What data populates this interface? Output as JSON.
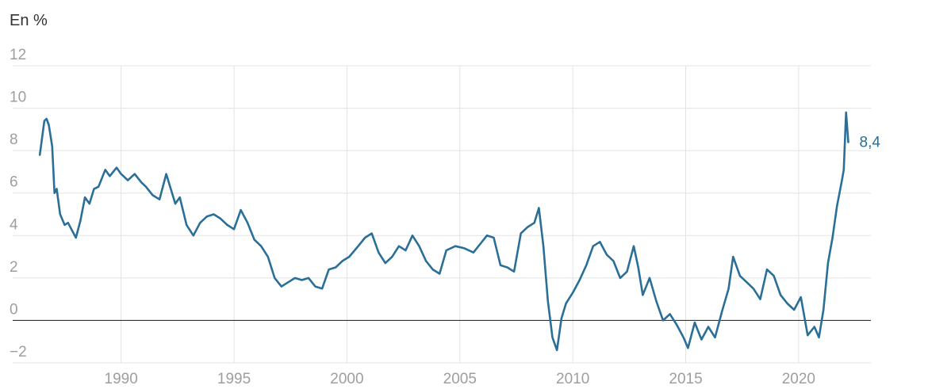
{
  "chart_data": {
    "type": "line",
    "title": "",
    "ylabel": "En %",
    "xlabel": "",
    "ylim": [
      -2,
      12
    ],
    "xlim": [
      1985.2,
      2023.2
    ],
    "yticks": [
      12,
      10,
      8,
      6,
      4,
      2,
      0,
      -2
    ],
    "ytick_labels": [
      "12",
      "10",
      "8",
      "6",
      "4",
      "2",
      "0",
      "−2"
    ],
    "xticks": [
      1990,
      1995,
      2000,
      2005,
      2010,
      2015,
      2020
    ],
    "xtick_labels": [
      "1990",
      "1995",
      "2000",
      "2005",
      "2010",
      "2015",
      "2020"
    ],
    "grid": true,
    "zero_line": true,
    "colors": {
      "line": "#2a6f97",
      "grid": "#e3e3e3",
      "zero": "#333333",
      "tick_text": "#9e9e9e"
    },
    "end_label": "8,4",
    "series": [
      {
        "name": "",
        "x": [
          1986.4,
          1986.6,
          1986.7,
          1986.8,
          1986.95,
          1987.05,
          1987.15,
          1987.3,
          1987.5,
          1987.65,
          1987.8,
          1988.0,
          1988.2,
          1988.4,
          1988.6,
          1988.8,
          1989.0,
          1989.3,
          1989.5,
          1989.8,
          1990.0,
          1990.3,
          1990.6,
          1990.9,
          1991.1,
          1991.4,
          1991.7,
          1992.0,
          1992.2,
          1992.4,
          1992.6,
          1992.9,
          1993.2,
          1993.5,
          1993.8,
          1994.1,
          1994.4,
          1994.7,
          1995.0,
          1995.3,
          1995.6,
          1995.9,
          1996.2,
          1996.5,
          1996.8,
          1997.1,
          1997.4,
          1997.7,
          1998.0,
          1998.3,
          1998.6,
          1998.9,
          1999.2,
          1999.5,
          1999.8,
          2000.1,
          2000.5,
          2000.8,
          2001.1,
          2001.4,
          2001.7,
          2002.0,
          2002.3,
          2002.6,
          2002.9,
          2003.2,
          2003.5,
          2003.8,
          2004.1,
          2004.4,
          2004.8,
          2005.2,
          2005.6,
          2005.9,
          2006.2,
          2006.5,
          2006.8,
          2007.1,
          2007.4,
          2007.7,
          2008.0,
          2008.3,
          2008.5,
          2008.7,
          2008.9,
          2009.1,
          2009.3,
          2009.5,
          2009.7,
          2010.0,
          2010.3,
          2010.6,
          2010.9,
          2011.2,
          2011.5,
          2011.8,
          2012.1,
          2012.4,
          2012.7,
          2012.9,
          2013.1,
          2013.4,
          2013.7,
          2014.0,
          2014.3,
          2014.6,
          2014.9,
          2015.1,
          2015.4,
          2015.7,
          2016.0,
          2016.3,
          2016.6,
          2016.9,
          2017.1,
          2017.4,
          2017.7,
          2018.0,
          2018.3,
          2018.6,
          2018.9,
          2019.2,
          2019.5,
          2019.8,
          2020.1,
          2020.4,
          2020.7,
          2020.9,
          2021.1,
          2021.3,
          2021.5,
          2021.7,
          2021.9,
          2022.0,
          2022.1,
          2022.2
        ],
        "values": [
          7.8,
          9.4,
          9.5,
          9.2,
          8.2,
          6.0,
          6.2,
          5.0,
          4.5,
          4.6,
          4.3,
          3.9,
          4.7,
          5.8,
          5.5,
          6.2,
          6.3,
          7.1,
          6.8,
          7.2,
          6.9,
          6.6,
          6.9,
          6.5,
          6.3,
          5.9,
          5.7,
          6.9,
          6.2,
          5.5,
          5.8,
          4.5,
          4.0,
          4.6,
          4.9,
          5.0,
          4.8,
          4.5,
          4.3,
          5.2,
          4.6,
          3.8,
          3.5,
          3.0,
          2.0,
          1.6,
          1.8,
          2.0,
          1.9,
          2.0,
          1.6,
          1.5,
          2.4,
          2.5,
          2.8,
          3.0,
          3.5,
          3.9,
          4.1,
          3.2,
          2.7,
          3.0,
          3.5,
          3.3,
          4.0,
          3.5,
          2.8,
          2.4,
          2.2,
          3.3,
          3.5,
          3.4,
          3.2,
          3.6,
          4.0,
          3.9,
          2.6,
          2.5,
          2.3,
          4.1,
          4.4,
          4.6,
          5.3,
          3.5,
          0.9,
          -0.8,
          -1.4,
          0.1,
          0.8,
          1.3,
          1.9,
          2.6,
          3.5,
          3.7,
          3.1,
          2.8,
          2.0,
          2.3,
          3.5,
          2.5,
          1.2,
          2.0,
          0.9,
          0.0,
          0.3,
          -0.2,
          -0.8,
          -1.3,
          -0.1,
          -0.9,
          -0.3,
          -0.8,
          0.4,
          1.5,
          3.0,
          2.1,
          1.8,
          1.5,
          1.0,
          2.4,
          2.1,
          1.2,
          0.8,
          0.5,
          1.1,
          -0.7,
          -0.3,
          -0.8,
          0.5,
          2.7,
          3.9,
          5.4,
          6.5,
          7.1,
          9.8,
          8.4
        ]
      }
    ]
  }
}
